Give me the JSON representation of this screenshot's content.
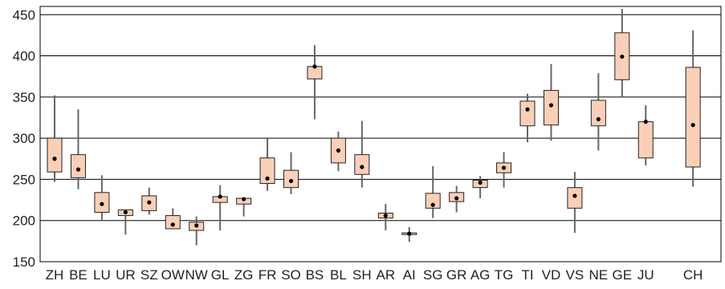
{
  "chart_data": {
    "type": "boxplot",
    "title": "",
    "xlabel": "",
    "ylabel": "",
    "ylim": [
      150,
      460
    ],
    "yticks": [
      150,
      200,
      250,
      300,
      350,
      400,
      450
    ],
    "grid": "horizontal",
    "colors": {
      "box_fill": "#f9cfb8",
      "box_edge": "#222222",
      "whisker": "#666666",
      "median": "#000000",
      "grid": "#000000"
    },
    "categories": [
      "ZH",
      "BE",
      "LU",
      "UR",
      "SZ",
      "OW",
      "NW",
      "GL",
      "ZG",
      "FR",
      "SO",
      "BS",
      "BL",
      "SH",
      "AR",
      "AI",
      "SG",
      "GR",
      "AG",
      "TG",
      "TI",
      "VD",
      "VS",
      "NE",
      "GE",
      "JU",
      "CH"
    ],
    "slots": [
      0,
      1,
      2,
      3,
      4,
      5,
      6,
      7,
      8,
      9,
      10,
      11,
      12,
      13,
      14,
      15,
      16,
      17,
      18,
      19,
      20,
      21,
      22,
      23,
      24,
      25,
      27
    ],
    "boxes": [
      {
        "wlo": 247,
        "q1": 259,
        "med": 275,
        "q3": 300,
        "whi": 352
      },
      {
        "wlo": 238,
        "q1": 252,
        "med": 262,
        "q3": 280,
        "whi": 335
      },
      {
        "wlo": 201,
        "q1": 210,
        "med": 220,
        "q3": 234,
        "whi": 255
      },
      {
        "wlo": 183,
        "q1": 206,
        "med": 210,
        "q3": 213,
        "whi": 213
      },
      {
        "wlo": 207,
        "q1": 212,
        "med": 222,
        "q3": 230,
        "whi": 240
      },
      {
        "wlo": 190,
        "q1": 190,
        "med": 195,
        "q3": 206,
        "whi": 215
      },
      {
        "wlo": 170,
        "q1": 188,
        "med": 194,
        "q3": 198,
        "whi": 205
      },
      {
        "wlo": 188,
        "q1": 222,
        "med": 229,
        "q3": 229,
        "whi": 243
      },
      {
        "wlo": 205,
        "q1": 220,
        "med": 226,
        "q3": 227,
        "whi": 227
      },
      {
        "wlo": 236,
        "q1": 245,
        "med": 251,
        "q3": 276,
        "whi": 300
      },
      {
        "wlo": 232,
        "q1": 240,
        "med": 248,
        "q3": 261,
        "whi": 283
      },
      {
        "wlo": 323,
        "q1": 372,
        "med": 387,
        "q3": 387,
        "whi": 413
      },
      {
        "wlo": 260,
        "q1": 270,
        "med": 285,
        "q3": 300,
        "whi": 308
      },
      {
        "wlo": 240,
        "q1": 256,
        "med": 265,
        "q3": 280,
        "whi": 321
      },
      {
        "wlo": 188,
        "q1": 203,
        "med": 206,
        "q3": 209,
        "whi": 220
      },
      {
        "wlo": 174,
        "q1": 183,
        "med": 184,
        "q3": 185,
        "whi": 192
      },
      {
        "wlo": 203,
        "q1": 215,
        "med": 219,
        "q3": 233,
        "whi": 266
      },
      {
        "wlo": 210,
        "q1": 223,
        "med": 227,
        "q3": 234,
        "whi": 242
      },
      {
        "wlo": 227,
        "q1": 240,
        "med": 246,
        "q3": 249,
        "whi": 254
      },
      {
        "wlo": 240,
        "q1": 258,
        "med": 264,
        "q3": 270,
        "whi": 283
      },
      {
        "wlo": 295,
        "q1": 315,
        "med": 335,
        "q3": 345,
        "whi": 354
      },
      {
        "wlo": 297,
        "q1": 316,
        "med": 340,
        "q3": 358,
        "whi": 390
      },
      {
        "wlo": 185,
        "q1": 215,
        "med": 230,
        "q3": 240,
        "whi": 259
      },
      {
        "wlo": 285,
        "q1": 315,
        "med": 323,
        "q3": 346,
        "whi": 379
      },
      {
        "wlo": 350,
        "q1": 371,
        "med": 399,
        "q3": 428,
        "whi": 457
      },
      {
        "wlo": 267,
        "q1": 276,
        "med": 320,
        "q3": 320,
        "whi": 340
      },
      {
        "wlo": 241,
        "q1": 265,
        "med": 316,
        "q3": 386,
        "whi": 431
      }
    ]
  }
}
